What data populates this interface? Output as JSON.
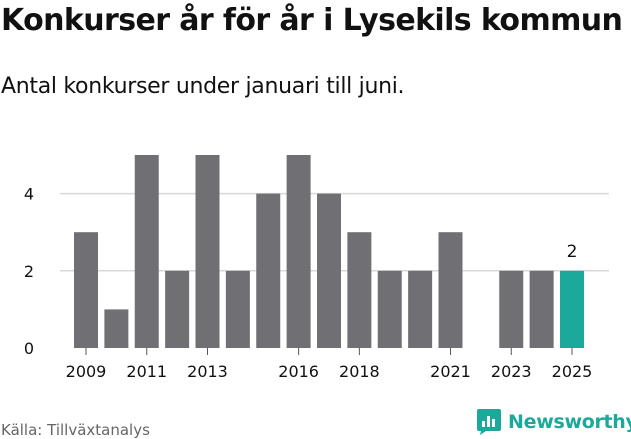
{
  "title": "Konkurser år för år i Lysekils kommun",
  "subtitle": "Antal konkurser under januari till juni.",
  "source": "Källa: Tillväxtanalys",
  "brand": "Newsworthy",
  "colors": {
    "bar": "#707074",
    "highlight": "#1ba99b",
    "grid": "#d9d9d9",
    "text": "#111111"
  },
  "chart_data": {
    "type": "bar",
    "categories": [
      "2009",
      "2010",
      "2011",
      "2012",
      "2013",
      "2014",
      "2015",
      "2016",
      "2017",
      "2018",
      "2019",
      "2020",
      "2021",
      "2022",
      "2023",
      "2024",
      "2025"
    ],
    "values": [
      3,
      1,
      5,
      2,
      5,
      2,
      4,
      5,
      4,
      3,
      2,
      2,
      3,
      0,
      2,
      2,
      2
    ],
    "x_tick_labels": [
      "2009",
      "2011",
      "2013",
      "2016",
      "2018",
      "2021",
      "2023",
      "2025"
    ],
    "y_ticks": [
      0,
      2,
      4
    ],
    "ylim": [
      0,
      5
    ],
    "highlight": {
      "category": "2025",
      "label": "2"
    },
    "grid": true
  }
}
